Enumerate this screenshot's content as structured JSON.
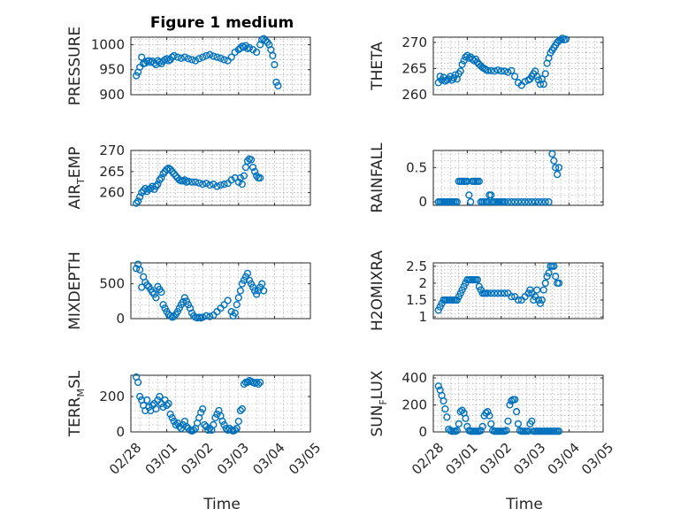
{
  "figure": {
    "title": "Figure 1 medium"
  },
  "colors": {
    "marker": "#0072BD",
    "axes": "#262626",
    "grid": "#9a9a9a"
  },
  "chart_data": [
    {
      "type": "scatter",
      "id": "pressure",
      "ylabel": "PRESSURE",
      "ylabel_main": "PRESSURE",
      "ylabel_sub": "",
      "title": "Figure 1 medium",
      "xlabel": "",
      "ylim": [
        900,
        1015
      ],
      "yticks": [
        900,
        950,
        1000
      ],
      "ytick_labels": [
        "900",
        "950",
        "1000"
      ],
      "xticks": [
        0,
        1,
        2,
        3,
        4,
        5
      ],
      "xtick_labels": [],
      "xlim": [
        0,
        5
      ],
      "x": [
        0.15,
        0.2,
        0.25,
        0.3,
        0.35,
        0.4,
        0.45,
        0.5,
        0.55,
        0.6,
        0.65,
        0.7,
        0.75,
        0.8,
        0.85,
        0.9,
        0.95,
        1.0,
        1.05,
        1.1,
        1.15,
        1.2,
        1.3,
        1.4,
        1.5,
        1.6,
        1.7,
        1.8,
        1.9,
        2.0,
        2.1,
        2.2,
        2.3,
        2.4,
        2.5,
        2.6,
        2.7,
        2.8,
        2.9,
        3.0,
        3.05,
        3.1,
        3.15,
        3.2,
        3.25,
        3.3,
        3.4,
        3.5,
        3.6,
        3.65,
        3.7,
        3.75,
        3.8,
        3.85,
        3.9,
        3.95,
        4.0,
        4.05,
        4.1
      ],
      "y": [
        938,
        945,
        955,
        975,
        962,
        963,
        967,
        968,
        965,
        967,
        963,
        960,
        968,
        965,
        962,
        967,
        970,
        972,
        968,
        970,
        975,
        978,
        975,
        973,
        975,
        972,
        970,
        968,
        972,
        975,
        978,
        980,
        977,
        975,
        973,
        970,
        968,
        975,
        985,
        990,
        993,
        997,
        995,
        998,
        992,
        994,
        990,
        985,
        1000,
        1010,
        1012,
        1008,
        1005,
        1000,
        990,
        978,
        960,
        925,
        918
      ]
    },
    {
      "type": "scatter",
      "id": "theta",
      "ylabel": "THETA",
      "ylabel_main": "THETA",
      "ylabel_sub": "",
      "title": "",
      "xlabel": "",
      "ylim": [
        260,
        271
      ],
      "yticks": [
        260,
        265,
        270
      ],
      "ytick_labels": [
        "260",
        "265",
        "270"
      ],
      "xticks": [
        0,
        1,
        2,
        3,
        4,
        5
      ],
      "xtick_labels": [],
      "xlim": [
        0,
        5
      ],
      "x": [
        0.15,
        0.2,
        0.25,
        0.3,
        0.35,
        0.4,
        0.45,
        0.5,
        0.55,
        0.6,
        0.65,
        0.7,
        0.75,
        0.8,
        0.85,
        0.9,
        0.95,
        1.0,
        1.05,
        1.1,
        1.15,
        1.2,
        1.25,
        1.3,
        1.35,
        1.4,
        1.45,
        1.5,
        1.55,
        1.6,
        1.7,
        1.8,
        1.9,
        2.0,
        2.1,
        2.2,
        2.3,
        2.4,
        2.5,
        2.6,
        2.7,
        2.8,
        2.85,
        2.9,
        2.95,
        3.0,
        3.05,
        3.1,
        3.15,
        3.2,
        3.25,
        3.3,
        3.35,
        3.4,
        3.45,
        3.5,
        3.55,
        3.6,
        3.65,
        3.7,
        3.75,
        3.8,
        3.85,
        3.9
      ],
      "y": [
        262.3,
        263.5,
        262.8,
        263.3,
        262.6,
        262.8,
        263.0,
        263.5,
        262.8,
        263.2,
        263.8,
        263.0,
        264.0,
        264.5,
        265.8,
        266.5,
        267.2,
        267.5,
        267.0,
        267.2,
        266.8,
        266.5,
        266.8,
        266.2,
        265.8,
        265.5,
        265.2,
        265.0,
        264.8,
        264.6,
        264.6,
        264.5,
        264.7,
        264.5,
        264.5,
        264.3,
        264.6,
        263.5,
        262.3,
        261.8,
        262.5,
        262.8,
        263.0,
        263.5,
        264.0,
        264.5,
        263.5,
        262.8,
        262.0,
        263.0,
        262.0,
        264.0,
        266.0,
        267.0,
        268.0,
        268.5,
        269.0,
        269.5,
        270.0,
        270.3,
        270.5,
        270.8,
        270.5,
        270.6
      ]
    },
    {
      "type": "scatter",
      "id": "air-temp",
      "ylabel": "AIR_TEMP",
      "ylabel_main": "AIR",
      "ylabel_sub": "T",
      "ylabel_rest": "EMP",
      "title": "",
      "xlabel": "",
      "ylim": [
        257,
        270
      ],
      "yticks": [
        260,
        265,
        270
      ],
      "ytick_labels": [
        "260",
        "265",
        "270"
      ],
      "xticks": [
        0,
        1,
        2,
        3,
        4,
        5
      ],
      "xtick_labels": [],
      "xlim": [
        0,
        5
      ],
      "x": [
        0.15,
        0.2,
        0.25,
        0.3,
        0.35,
        0.4,
        0.45,
        0.5,
        0.55,
        0.6,
        0.65,
        0.7,
        0.75,
        0.8,
        0.85,
        0.9,
        0.95,
        1.0,
        1.05,
        1.1,
        1.15,
        1.2,
        1.25,
        1.3,
        1.35,
        1.4,
        1.45,
        1.5,
        1.55,
        1.6,
        1.7,
        1.8,
        1.9,
        2.0,
        2.1,
        2.2,
        2.3,
        2.4,
        2.5,
        2.6,
        2.7,
        2.8,
        2.9,
        3.0,
        3.05,
        3.1,
        3.15,
        3.2,
        3.25,
        3.3,
        3.35,
        3.4,
        3.45,
        3.5,
        3.55,
        3.6
      ],
      "y": [
        257.5,
        258.0,
        259.0,
        260.0,
        260.5,
        261.0,
        260.3,
        260.8,
        261.0,
        261.5,
        260.8,
        261.5,
        262.0,
        263.0,
        263.5,
        264.5,
        265.0,
        265.5,
        265.8,
        265.5,
        265.0,
        264.5,
        264.0,
        263.5,
        263.0,
        262.8,
        262.8,
        263.0,
        262.5,
        262.7,
        262.5,
        262.5,
        262.3,
        262.0,
        262.2,
        261.8,
        262.0,
        261.5,
        261.8,
        262.0,
        262.2,
        263.0,
        263.5,
        262.5,
        263.5,
        262.0,
        264.0,
        266.0,
        267.5,
        268.0,
        267.8,
        266.0,
        265.0,
        264.0,
        263.5,
        263.5
      ]
    },
    {
      "type": "scatter",
      "id": "rainfall",
      "ylabel": "RAINFALL",
      "ylabel_main": "RAINFALL",
      "ylabel_sub": "",
      "title": "",
      "xlabel": "",
      "ylim": [
        -0.05,
        0.75
      ],
      "yticks": [
        0,
        0.5
      ],
      "ytick_labels": [
        "0",
        "0.5"
      ],
      "xticks": [
        0,
        1,
        2,
        3,
        4,
        5
      ],
      "xtick_labels": [],
      "xlim": [
        0,
        5
      ],
      "x": [
        0.15,
        0.2,
        0.25,
        0.3,
        0.35,
        0.4,
        0.45,
        0.5,
        0.55,
        0.6,
        0.65,
        0.7,
        0.75,
        0.8,
        0.85,
        0.9,
        0.95,
        1.0,
        1.05,
        1.1,
        1.15,
        1.2,
        1.25,
        1.3,
        1.35,
        1.4,
        1.45,
        1.5,
        1.55,
        1.6,
        1.65,
        1.7,
        1.75,
        1.8,
        1.85,
        1.9,
        1.95,
        2.0,
        2.05,
        2.1,
        2.2,
        2.3,
        2.4,
        2.5,
        2.6,
        2.7,
        2.8,
        2.9,
        3.0,
        3.1,
        3.2,
        3.3,
        3.4,
        3.5,
        3.55,
        3.6,
        3.65,
        3.7
      ],
      "y": [
        0,
        0,
        0,
        0,
        0,
        0,
        0,
        0,
        0,
        0,
        0,
        0,
        0.3,
        0.3,
        0.3,
        0.3,
        0.3,
        0.3,
        0.1,
        0,
        0.3,
        0.3,
        0.3,
        0.3,
        0.3,
        0,
        0,
        0,
        0,
        0,
        0.1,
        0.1,
        0,
        0,
        0,
        0,
        0,
        0,
        0,
        0,
        0,
        0,
        0,
        0,
        0,
        0,
        0,
        0,
        0,
        0,
        0,
        0,
        0,
        0.7,
        0.6,
        0.5,
        0.4,
        0.5
      ]
    },
    {
      "type": "scatter",
      "id": "mixdepth",
      "ylabel": "MIXDEPTH",
      "ylabel_main": "MIXDEPTH",
      "ylabel_sub": "",
      "title": "",
      "xlabel": "",
      "ylim": [
        0,
        800
      ],
      "yticks": [
        0,
        500
      ],
      "ytick_labels": [
        "0",
        "500"
      ],
      "xticks": [
        0,
        1,
        2,
        3,
        4,
        5
      ],
      "xtick_labels": [],
      "xlim": [
        0,
        5
      ],
      "x": [
        0.15,
        0.2,
        0.25,
        0.3,
        0.35,
        0.4,
        0.45,
        0.5,
        0.55,
        0.6,
        0.65,
        0.7,
        0.75,
        0.8,
        0.85,
        0.9,
        0.95,
        1.0,
        1.05,
        1.1,
        1.15,
        1.2,
        1.25,
        1.3,
        1.35,
        1.4,
        1.45,
        1.5,
        1.55,
        1.6,
        1.65,
        1.7,
        1.75,
        1.8,
        1.85,
        1.9,
        1.95,
        2.0,
        2.1,
        2.2,
        2.3,
        2.4,
        2.5,
        2.6,
        2.7,
        2.8,
        2.85,
        2.9,
        2.95,
        3.0,
        3.05,
        3.1,
        3.15,
        3.2,
        3.25,
        3.3,
        3.35,
        3.4,
        3.45,
        3.5,
        3.55,
        3.6,
        3.65,
        3.7
      ],
      "y": [
        720,
        780,
        700,
        450,
        600,
        520,
        480,
        460,
        420,
        380,
        350,
        300,
        460,
        420,
        380,
        200,
        150,
        100,
        60,
        40,
        20,
        30,
        60,
        100,
        150,
        200,
        240,
        300,
        250,
        200,
        150,
        80,
        40,
        20,
        10,
        20,
        10,
        20,
        40,
        30,
        50,
        100,
        150,
        200,
        260,
        100,
        40,
        80,
        200,
        300,
        400,
        500,
        550,
        600,
        650,
        550,
        500,
        450,
        400,
        350,
        400,
        450,
        500,
        400
      ]
    },
    {
      "type": "scatter",
      "id": "h2omixra",
      "ylabel": "H2OMIXRA",
      "ylabel_main": "H2OMIXRA",
      "ylabel_sub": "",
      "title": "",
      "xlabel": "",
      "ylim": [
        0.95,
        2.6
      ],
      "yticks": [
        1,
        1.5,
        2,
        2.5
      ],
      "ytick_labels": [
        "1",
        "1.5",
        "2",
        "2.5"
      ],
      "xticks": [
        0,
        1,
        2,
        3,
        4,
        5
      ],
      "xtick_labels": [],
      "xlim": [
        0,
        5
      ],
      "x": [
        0.15,
        0.2,
        0.25,
        0.3,
        0.35,
        0.4,
        0.45,
        0.5,
        0.55,
        0.6,
        0.65,
        0.7,
        0.75,
        0.8,
        0.85,
        0.9,
        0.95,
        1.0,
        1.05,
        1.1,
        1.15,
        1.2,
        1.25,
        1.3,
        1.35,
        1.4,
        1.45,
        1.5,
        1.55,
        1.6,
        1.7,
        1.8,
        1.9,
        2.0,
        2.1,
        2.2,
        2.3,
        2.4,
        2.5,
        2.6,
        2.7,
        2.8,
        2.85,
        2.9,
        2.95,
        3.0,
        3.05,
        3.1,
        3.15,
        3.2,
        3.25,
        3.3,
        3.35,
        3.4,
        3.45,
        3.5,
        3.55,
        3.6,
        3.65,
        3.7
      ],
      "y": [
        1.2,
        1.3,
        1.4,
        1.5,
        1.5,
        1.5,
        1.5,
        1.5,
        1.5,
        1.5,
        1.5,
        1.5,
        1.6,
        1.7,
        1.8,
        1.9,
        2.0,
        2.1,
        2.1,
        2.1,
        2.1,
        2.1,
        2.1,
        2.1,
        1.9,
        1.8,
        1.7,
        1.7,
        1.7,
        1.7,
        1.7,
        1.7,
        1.7,
        1.7,
        1.7,
        1.7,
        1.6,
        1.6,
        1.5,
        1.5,
        1.6,
        1.7,
        1.8,
        1.7,
        1.5,
        1.6,
        1.8,
        1.5,
        1.4,
        1.5,
        1.8,
        2.0,
        2.2,
        2.3,
        2.5,
        2.5,
        2.5,
        2.2,
        2.0,
        2.0
      ]
    },
    {
      "type": "scatter",
      "id": "terr-msl",
      "ylabel": "TERR_MSL",
      "ylabel_main": "TERR",
      "ylabel_sub": "M",
      "ylabel_rest": "SL",
      "title": "",
      "xlabel": "Time",
      "ylim": [
        0,
        320
      ],
      "yticks": [
        0,
        200
      ],
      "ytick_labels": [
        "0",
        "200"
      ],
      "xticks": [
        0,
        1,
        2,
        3,
        4,
        5
      ],
      "xtick_labels": [
        "02/28",
        "03/01",
        "03/02",
        "03/03",
        "03/04",
        "03/05"
      ],
      "xlim": [
        0,
        5
      ],
      "x": [
        0.15,
        0.2,
        0.25,
        0.3,
        0.35,
        0.4,
        0.45,
        0.5,
        0.55,
        0.6,
        0.65,
        0.7,
        0.75,
        0.8,
        0.85,
        0.9,
        0.95,
        1.0,
        1.05,
        1.1,
        1.15,
        1.2,
        1.25,
        1.3,
        1.35,
        1.4,
        1.45,
        1.5,
        1.55,
        1.6,
        1.65,
        1.7,
        1.75,
        1.8,
        1.85,
        1.9,
        1.95,
        2.0,
        2.05,
        2.1,
        2.15,
        2.2,
        2.25,
        2.3,
        2.35,
        2.4,
        2.45,
        2.5,
        2.55,
        2.6,
        2.65,
        2.7,
        2.75,
        2.8,
        2.85,
        2.9,
        2.95,
        3.0,
        3.05,
        3.1,
        3.15,
        3.2,
        3.25,
        3.3,
        3.35,
        3.4,
        3.45,
        3.5,
        3.55,
        3.6
      ],
      "y": [
        310,
        280,
        200,
        180,
        150,
        120,
        180,
        140,
        120,
        150,
        160,
        130,
        180,
        200,
        160,
        140,
        180,
        150,
        160,
        100,
        80,
        60,
        40,
        50,
        30,
        20,
        40,
        60,
        30,
        20,
        10,
        5,
        10,
        20,
        50,
        80,
        110,
        130,
        40,
        30,
        10,
        20,
        10,
        40,
        80,
        100,
        120,
        90,
        60,
        40,
        20,
        10,
        20,
        10,
        5,
        10,
        20,
        60,
        120,
        130,
        270,
        280,
        280,
        290,
        285,
        280,
        275,
        280,
        270,
        280
      ]
    },
    {
      "type": "scatter",
      "id": "sun-flux",
      "ylabel": "SUN_FLUX",
      "ylabel_main": "SUN",
      "ylabel_sub": "F",
      "ylabel_rest": "LUX",
      "title": "",
      "xlabel": "Time",
      "ylim": [
        0,
        420
      ],
      "yticks": [
        0,
        200,
        400
      ],
      "ytick_labels": [
        "0",
        "200",
        "400"
      ],
      "xticks": [
        0,
        1,
        2,
        3,
        4,
        5
      ],
      "xtick_labels": [
        "02/28",
        "03/01",
        "03/02",
        "03/03",
        "03/04",
        "03/05"
      ],
      "xlim": [
        0,
        5
      ],
      "x": [
        0.15,
        0.2,
        0.25,
        0.3,
        0.35,
        0.4,
        0.45,
        0.5,
        0.55,
        0.6,
        0.65,
        0.7,
        0.75,
        0.8,
        0.85,
        0.9,
        0.95,
        1.0,
        1.05,
        1.1,
        1.15,
        1.2,
        1.25,
        1.3,
        1.35,
        1.4,
        1.45,
        1.5,
        1.55,
        1.6,
        1.65,
        1.7,
        1.75,
        1.8,
        1.85,
        1.9,
        1.95,
        2.0,
        2.05,
        2.1,
        2.15,
        2.2,
        2.25,
        2.3,
        2.35,
        2.4,
        2.45,
        2.5,
        2.55,
        2.6,
        2.65,
        2.7,
        2.75,
        2.8,
        2.85,
        2.9,
        2.95,
        3.0,
        3.05,
        3.1,
        3.15,
        3.2,
        3.25,
        3.3,
        3.35,
        3.4,
        3.45,
        3.5,
        3.55,
        3.6,
        3.65,
        3.7
      ],
      "y": [
        340,
        310,
        270,
        230,
        170,
        110,
        20,
        10,
        5,
        5,
        5,
        10,
        60,
        150,
        160,
        140,
        100,
        40,
        10,
        5,
        5,
        5,
        5,
        5,
        5,
        10,
        40,
        120,
        140,
        150,
        120,
        60,
        10,
        5,
        5,
        5,
        5,
        5,
        5,
        5,
        10,
        80,
        200,
        230,
        240,
        240,
        150,
        60,
        10,
        5,
        5,
        5,
        5,
        5,
        60,
        80,
        5,
        5,
        5,
        5,
        5,
        5,
        5,
        5,
        5,
        5,
        5,
        5,
        5,
        5,
        5,
        5
      ]
    }
  ]
}
